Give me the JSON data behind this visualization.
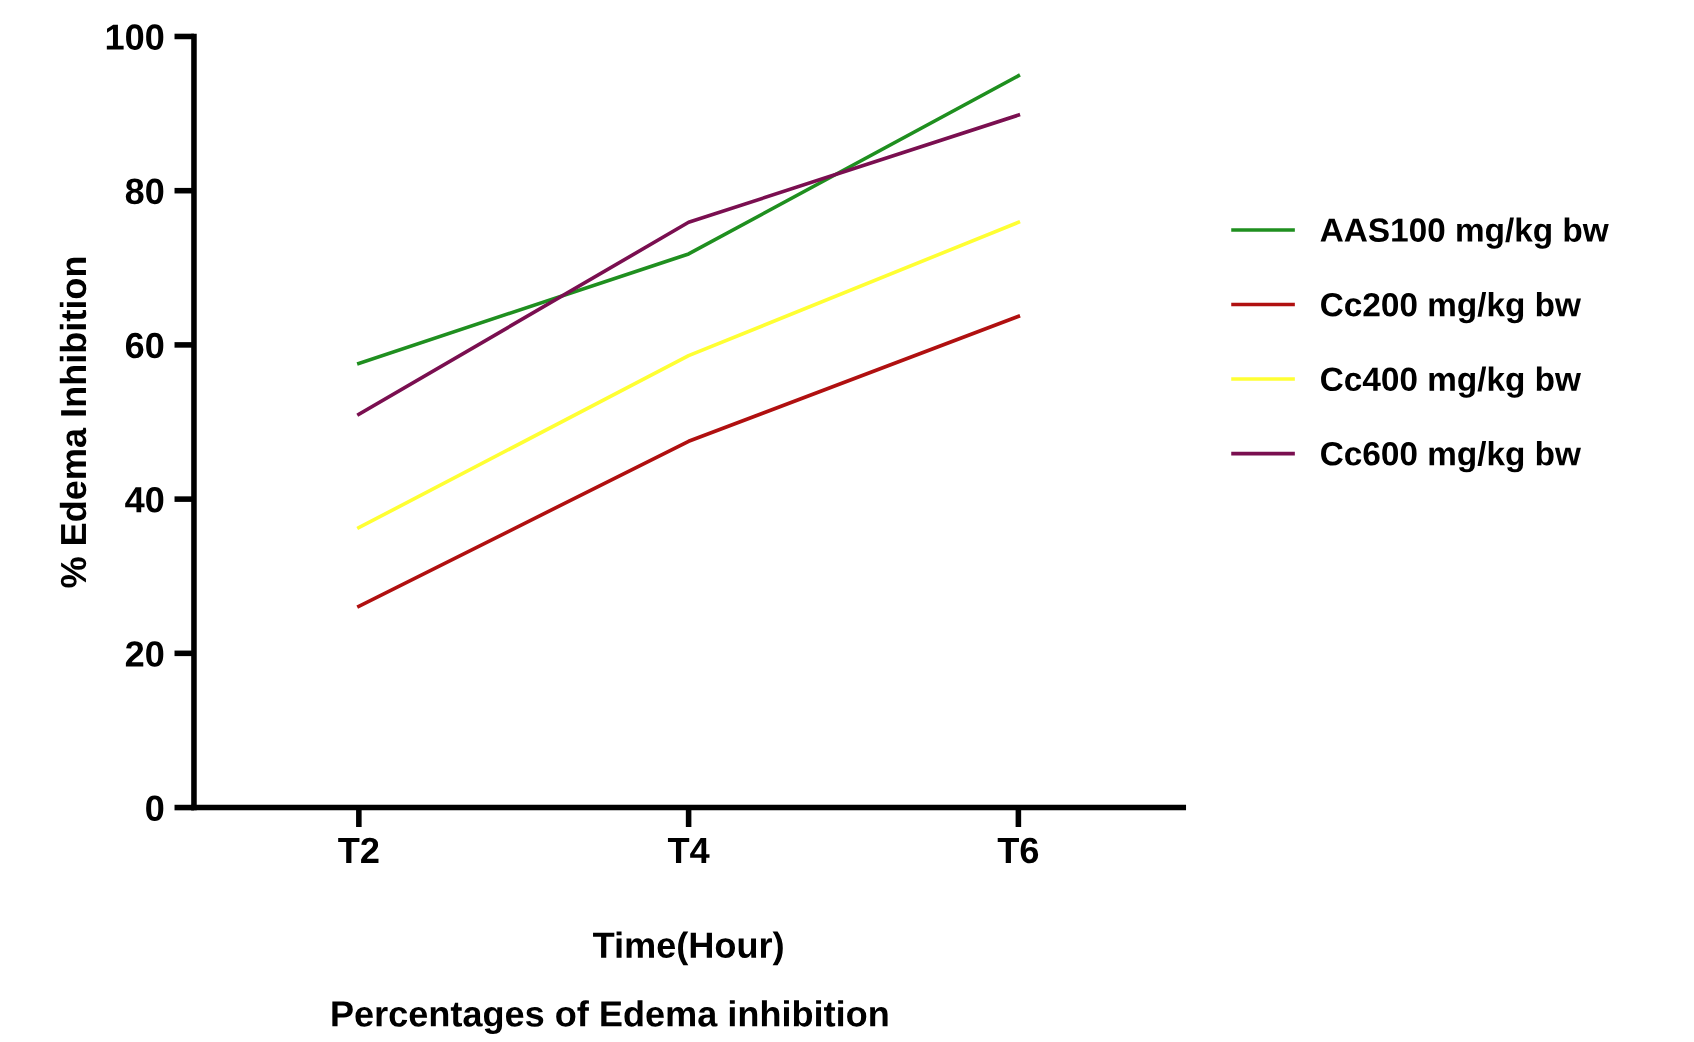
{
  "chart_data": {
    "type": "line",
    "title": "Percentages of Edema inhibition",
    "xlabel": "Time(Hour)",
    "ylabel": "% Edema Inhibition",
    "categories": [
      "T2",
      "T4",
      "T6"
    ],
    "series": [
      {
        "name": "AAS100 mg/kg bw",
        "color": "#1f8f1f",
        "values": [
          57.6,
          71.8,
          94.9
        ]
      },
      {
        "name": "Cc200 mg/kg bw",
        "color": "#b01010",
        "values": [
          26.1,
          47.5,
          63.7
        ]
      },
      {
        "name": "Cc400 mg/kg bw",
        "color": "#ffff33",
        "values": [
          36.3,
          58.6,
          75.9
        ]
      },
      {
        "name": "Cc600 mg/kg bw",
        "color": "#7a0f50",
        "values": [
          51.0,
          75.9,
          89.8
        ]
      }
    ],
    "ylim": [
      0,
      100
    ],
    "yticks": [
      0,
      20,
      40,
      60,
      80,
      100
    ],
    "grid": false,
    "legend": "right",
    "marker": "none",
    "line_style": "solid"
  }
}
